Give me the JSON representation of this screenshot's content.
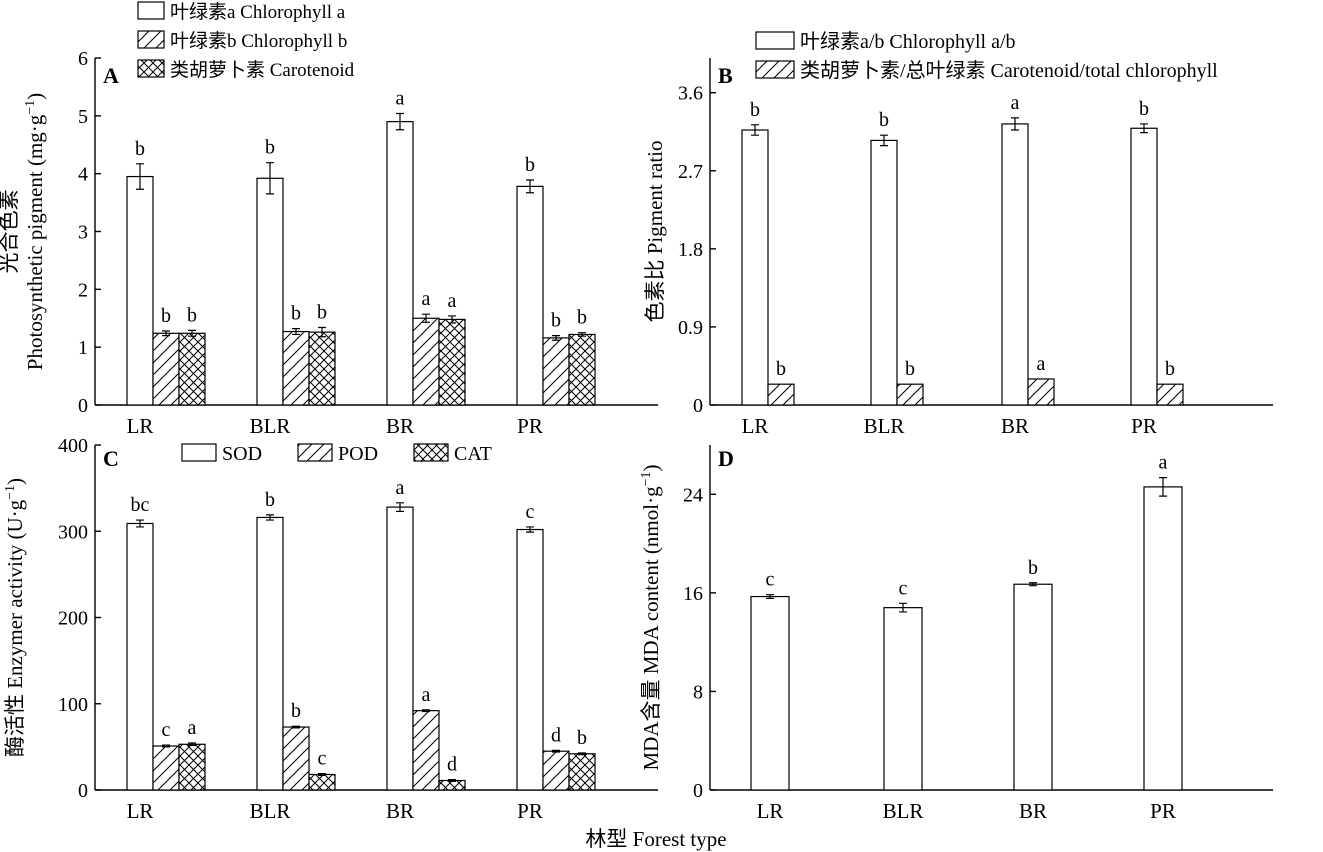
{
  "figure": {
    "xlabel": "林型 Forest type",
    "categories": [
      "LR",
      "BLR",
      "BR",
      "PR"
    ]
  },
  "chart_data": [
    {
      "panel": "A",
      "type": "bar",
      "categories": [
        "LR",
        "BLR",
        "BR",
        "PR"
      ],
      "ylabel_cn": "光合色素",
      "ylabel_en": "Photosynthetic pigment (mg·g",
      "ylabel_sup": "−1",
      "ylabel_close": ")",
      "ylim": [
        0,
        6
      ],
      "yticks": [
        0,
        1,
        2,
        3,
        4,
        5,
        6
      ],
      "ytick_labels": [
        "0",
        "1",
        "2",
        "3",
        "4",
        "5",
        "6"
      ],
      "legend_position": "top",
      "series": [
        {
          "name": "叶绿素a Chlorophyll a",
          "pattern": "plain",
          "values": [
            3.95,
            3.92,
            4.9,
            3.78
          ],
          "errors": [
            0.22,
            0.27,
            0.14,
            0.11
          ],
          "letters": [
            "b",
            "b",
            "a",
            "b"
          ]
        },
        {
          "name": "叶绿素b Chlorophyll b",
          "pattern": "hatch",
          "values": [
            1.24,
            1.27,
            1.5,
            1.16
          ],
          "errors": [
            0.04,
            0.05,
            0.07,
            0.04
          ],
          "letters": [
            "b",
            "b",
            "a",
            "b"
          ]
        },
        {
          "name": "类胡萝卜素 Carotenoid",
          "pattern": "cross",
          "values": [
            1.24,
            1.26,
            1.48,
            1.22
          ],
          "errors": [
            0.05,
            0.08,
            0.06,
            0.03
          ],
          "letters": [
            "b",
            "b",
            "a",
            "b"
          ]
        }
      ]
    },
    {
      "panel": "B",
      "type": "bar",
      "categories": [
        "LR",
        "BLR",
        "BR",
        "PR"
      ],
      "ylabel_cn": "色素比",
      "ylabel_en": "Pigment ratio",
      "ylim": [
        0,
        4
      ],
      "yticks": [
        0,
        0.9,
        1.8,
        2.7,
        3.6
      ],
      "ytick_labels": [
        "0",
        "0.9",
        "1.8",
        "2.7",
        "3.6"
      ],
      "legend_position": "top",
      "series": [
        {
          "name": "叶绿素a/b Chlorophyll a/b",
          "pattern": "plain",
          "values": [
            3.17,
            3.05,
            3.24,
            3.19
          ],
          "errors": [
            0.06,
            0.06,
            0.07,
            0.05
          ],
          "letters": [
            "b",
            "b",
            "a",
            "b"
          ]
        },
        {
          "name": "类胡萝卜素/总叶绿素 Carotenoid/total chlorophyll",
          "pattern": "hatch",
          "values": [
            0.24,
            0.24,
            0.3,
            0.24
          ],
          "errors": [
            0,
            0,
            0,
            0
          ],
          "letters": [
            "b",
            "b",
            "a",
            "b"
          ]
        }
      ]
    },
    {
      "panel": "C",
      "type": "bar",
      "categories": [
        "LR",
        "BLR",
        "BR",
        "PR"
      ],
      "ylabel_cn": "酶活性",
      "ylabel_en": "Enzymer activity (U·g",
      "ylabel_sup": "−1",
      "ylabel_close": ")",
      "ylim": [
        0,
        400
      ],
      "yticks": [
        0,
        100,
        200,
        300,
        400
      ],
      "ytick_labels": [
        "0",
        "100",
        "200",
        "300",
        "400"
      ],
      "legend_position": "top",
      "series": [
        {
          "name": "SOD",
          "pattern": "plain",
          "values": [
            309,
            316,
            328,
            302
          ],
          "errors": [
            4,
            3,
            5,
            3
          ],
          "letters": [
            "bc",
            "b",
            "a",
            "c"
          ]
        },
        {
          "name": "POD",
          "pattern": "hatch",
          "values": [
            51,
            73,
            92,
            45
          ],
          "errors": [
            1,
            1,
            1,
            1
          ],
          "letters": [
            "c",
            "b",
            "a",
            "d"
          ]
        },
        {
          "name": "CAT",
          "pattern": "cross",
          "values": [
            53,
            18,
            11,
            42
          ],
          "errors": [
            1.5,
            1,
            1,
            1
          ],
          "letters": [
            "a",
            "c",
            "d",
            "b"
          ]
        }
      ]
    },
    {
      "panel": "D",
      "type": "bar",
      "categories": [
        "LR",
        "BLR",
        "BR",
        "PR"
      ],
      "ylabel_cn": "MDA含量",
      "ylabel_en": "MDA content (nmol·g",
      "ylabel_sup": "−1",
      "ylabel_close": ")",
      "ylim": [
        0,
        28
      ],
      "yticks": [
        0,
        8,
        16,
        24
      ],
      "ytick_labels": [
        "0",
        "8",
        "16",
        "24"
      ],
      "series": [
        {
          "pattern": "plain",
          "values": [
            15.7,
            14.8,
            16.7,
            24.6
          ],
          "errors": [
            0.15,
            0.35,
            0.12,
            0.75
          ],
          "letters": [
            "c",
            "c",
            "b",
            "a"
          ]
        }
      ]
    }
  ]
}
